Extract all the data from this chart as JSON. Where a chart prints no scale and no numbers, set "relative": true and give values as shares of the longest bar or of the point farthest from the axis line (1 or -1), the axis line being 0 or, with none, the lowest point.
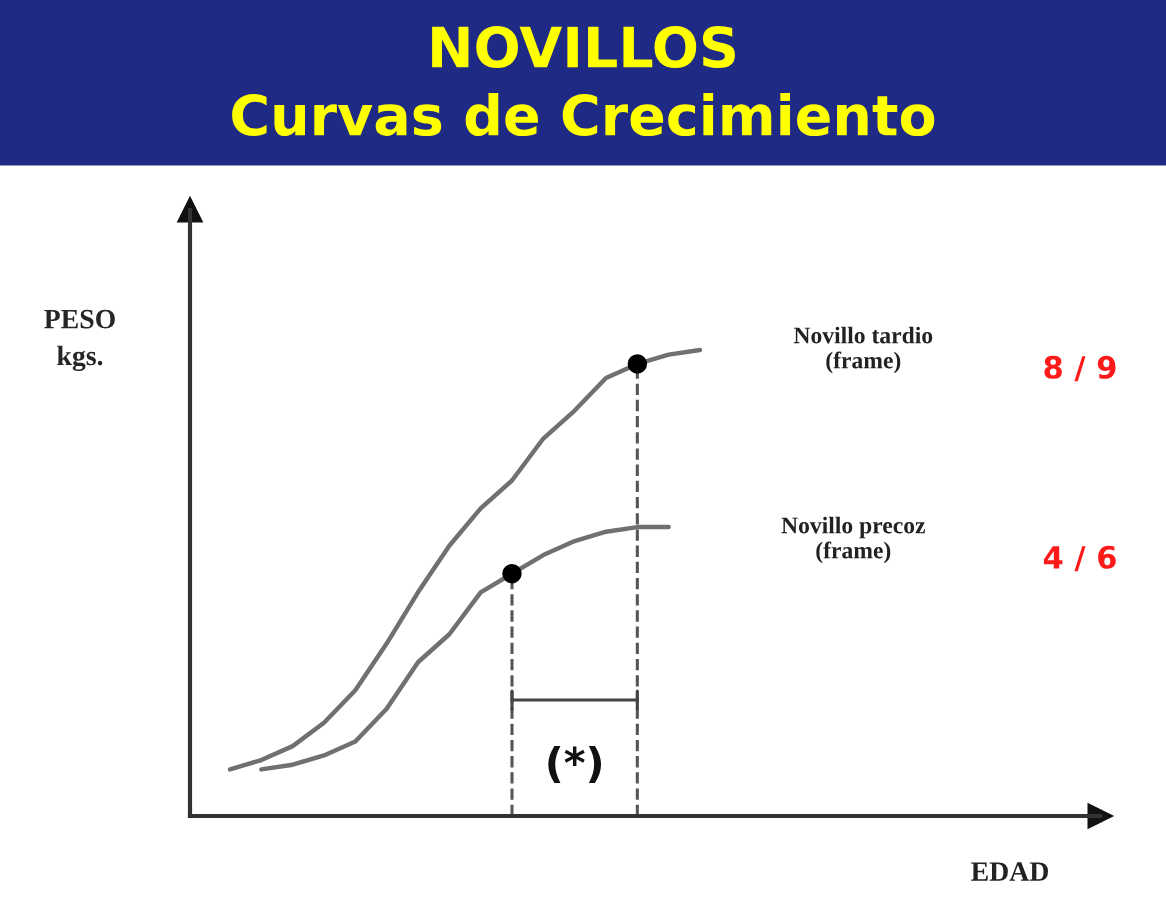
{
  "chart_data": {
    "type": "line",
    "title": "NOVILLOS",
    "subtitle": "Curvas de Crecimiento",
    "ylabel": "PESO\nkgs.",
    "relative": true,
    "categories": [
      null,
      null,
      null,
      null,
      null,
      null,
      null,
      null,
      null,
      null,
      null,
      null,
      null,
      null,
      null,
      null
    ],
    "series": [
      {
        "name": "Novillo tardio (frame)",
        "color": "#707070",
        "values": [
          0.1,
          0.12,
          0.15,
          0.2,
          0.27,
          0.37,
          0.48,
          0.58,
          0.66,
          0.72,
          0.81,
          0.87,
          0.94,
          0.97,
          0.99,
          1.0
        ]
      },
      {
        "name": "Novillo precoz (frame)",
        "color": "#707070",
        "values": [
          null,
          0.1,
          0.11,
          0.13,
          0.16,
          0.23,
          0.33,
          0.39,
          0.48,
          0.52,
          0.56,
          0.59,
          0.61,
          0.62,
          0.62,
          null
        ]
      }
    ],
    "annotations": [
      "8 / 9",
      "4 / 6",
      "(*)",
      "EDAD"
    ],
    "tick_labels": false,
    "line_style": "solid"
  }
}
